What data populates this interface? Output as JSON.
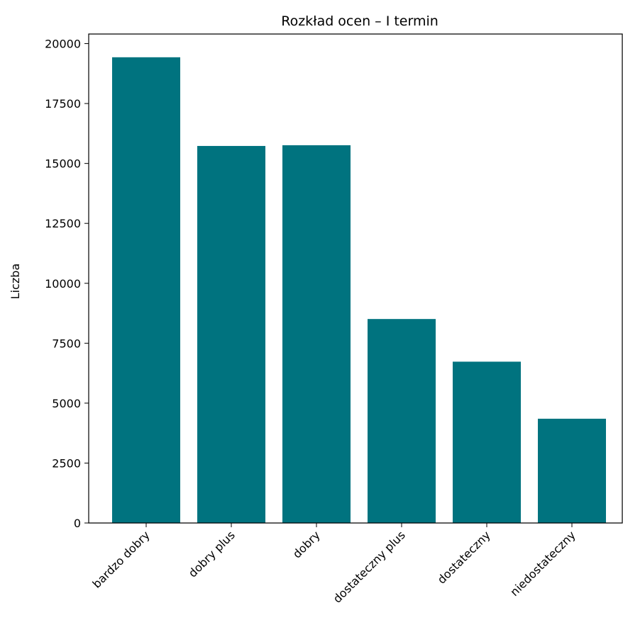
{
  "chart_data": {
    "type": "bar",
    "title": "Rozkład ocen – I termin",
    "xlabel": "",
    "ylabel": "Liczba",
    "categories": [
      "bardzo dobry",
      "dobry plus",
      "dobry",
      "dostateczny plus",
      "dostateczny",
      "niedostateczny"
    ],
    "values": [
      19430,
      15730,
      15760,
      8510,
      6730,
      4350
    ],
    "ylim": [
      0,
      20400
    ],
    "yticks": [
      0,
      2500,
      5000,
      7500,
      10000,
      12500,
      15000,
      17500,
      20000
    ],
    "bar_color": "#00737f",
    "grid": false,
    "x_tick_rotation": "45 degrees"
  }
}
